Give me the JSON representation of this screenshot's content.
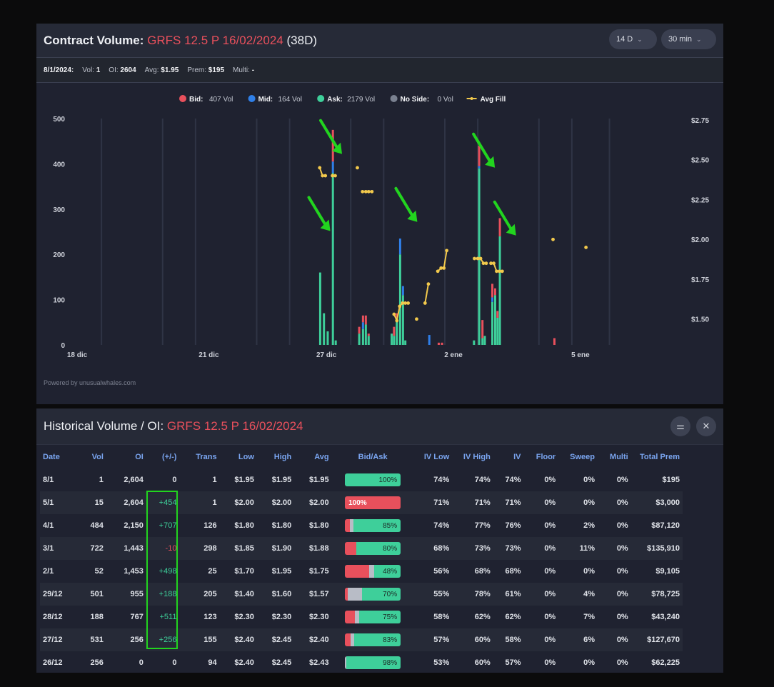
{
  "header": {
    "title_prefix": "Contract Volume:",
    "contract": "GRFS 12.5 P 16/02/2024",
    "days": "(38D)",
    "range_button": "14 D",
    "interval_button": "30 min"
  },
  "stats": {
    "date": "8/1/2024:",
    "vol_label": "Vol:",
    "vol": "1",
    "oi_label": "OI:",
    "oi": "2604",
    "avg_label": "Avg:",
    "avg": "$1.95",
    "prem_label": "Prem:",
    "prem": "$195",
    "multi_label": "Multi:",
    "multi": "-"
  },
  "chart_data": {
    "type": "bar",
    "legend_position": "top-center",
    "legend": [
      {
        "name": "Bid:",
        "value": "407 Vol",
        "color": "#e8505c"
      },
      {
        "name": "Mid:",
        "value": "164 Vol",
        "color": "#2f7fe8"
      },
      {
        "name": "Ask:",
        "value": "2179 Vol",
        "color": "#3ecf9a"
      },
      {
        "name": "No Side:",
        "value": "0 Vol",
        "color": "#7a8190"
      },
      {
        "name": "Avg Fill",
        "value": "",
        "color": "#f2c94c"
      }
    ],
    "x_labels": [
      "18 dic",
      "21 dic",
      "27 dic",
      "2 ene",
      "5 ene"
    ],
    "y_ticks": [
      "500",
      "400",
      "300",
      "200",
      "100",
      "0"
    ],
    "y_right_ticks": [
      "$2.75",
      "$2.50",
      "$2.25",
      "$2.00",
      "$1.75",
      "$1.50"
    ],
    "ylim": [
      0,
      500
    ],
    "y2lim": [
      1.3,
      2.75
    ],
    "grid": true,
    "bars": [
      {
        "x": 0.535,
        "ask": 160,
        "mid": 0,
        "bid": 0
      },
      {
        "x": 0.543,
        "ask": 70,
        "mid": 0,
        "bid": 0
      },
      {
        "x": 0.551,
        "ask": 30,
        "mid": 0,
        "bid": 0
      },
      {
        "x": 0.562,
        "ask": 380,
        "mid": 25,
        "bid": 70
      },
      {
        "x": 0.568,
        "ask": 10,
        "mid": 0,
        "bid": 0
      },
      {
        "x": 0.618,
        "ask": 25,
        "mid": 0,
        "bid": 15
      },
      {
        "x": 0.626,
        "ask": 35,
        "mid": 15,
        "bid": 15
      },
      {
        "x": 0.632,
        "ask": 45,
        "mid": 0,
        "bid": 20
      },
      {
        "x": 0.638,
        "ask": 20,
        "mid": 0,
        "bid": 5
      },
      {
        "x": 0.687,
        "ask": 25,
        "mid": 0,
        "bid": 0
      },
      {
        "x": 0.692,
        "ask": 20,
        "mid": 0,
        "bid": 20
      },
      {
        "x": 0.698,
        "ask": 60,
        "mid": 0,
        "bid": 10
      },
      {
        "x": 0.705,
        "ask": 200,
        "mid": 35,
        "bid": 0
      },
      {
        "x": 0.711,
        "ask": 110,
        "mid": 20,
        "bid": 0
      },
      {
        "x": 0.716,
        "ask": 10,
        "mid": 0,
        "bid": 0
      },
      {
        "x": 0.767,
        "ask": 0,
        "mid": 22,
        "bid": 0
      },
      {
        "x": 0.787,
        "ask": 0,
        "mid": 0,
        "bid": 5
      },
      {
        "x": 0.794,
        "ask": 0,
        "mid": 0,
        "bid": 5
      },
      {
        "x": 0.862,
        "ask": 10,
        "mid": 0,
        "bid": 0
      },
      {
        "x": 0.873,
        "ask": 390,
        "mid": 5,
        "bid": 45
      },
      {
        "x": 0.88,
        "ask": 15,
        "mid": 0,
        "bid": 40
      },
      {
        "x": 0.885,
        "ask": 20,
        "mid": 0,
        "bid": 0
      },
      {
        "x": 0.901,
        "ask": 95,
        "mid": 10,
        "bid": 30
      },
      {
        "x": 0.907,
        "ask": 110,
        "mid": 0,
        "bid": 15
      },
      {
        "x": 0.912,
        "ask": 60,
        "mid": 0,
        "bid": 15
      },
      {
        "x": 0.917,
        "ask": 240,
        "mid": 0,
        "bid": 40
      },
      {
        "x": 1.033,
        "ask": 0,
        "mid": 0,
        "bid": 15
      }
    ],
    "avg_fill_segments": [
      [
        [
          0.534,
          2.45
        ],
        [
          0.54,
          2.4
        ],
        [
          0.546,
          2.4
        ]
      ],
      [
        [
          0.561,
          2.4
        ],
        [
          0.567,
          2.4
        ]
      ],
      [
        [
          0.614,
          2.45
        ]
      ],
      [
        [
          0.625,
          2.3
        ],
        [
          0.632,
          2.3
        ],
        [
          0.638,
          2.3
        ],
        [
          0.645,
          2.3
        ]
      ],
      [
        [
          0.692,
          1.53
        ],
        [
          0.698,
          1.49
        ],
        [
          0.704,
          1.58
        ],
        [
          0.71,
          1.6
        ],
        [
          0.716,
          1.6
        ],
        [
          0.722,
          1.6
        ]
      ],
      [
        [
          0.74,
          1.5
        ]
      ],
      [
        [
          0.758,
          1.6
        ],
        [
          0.765,
          1.72
        ]
      ],
      [
        [
          0.785,
          1.8
        ],
        [
          0.792,
          1.82
        ],
        [
          0.798,
          1.82
        ],
        [
          0.804,
          1.93
        ]
      ],
      [
        [
          0.863,
          1.88
        ],
        [
          0.87,
          1.88
        ],
        [
          0.876,
          1.88
        ],
        [
          0.882,
          1.85
        ],
        [
          0.888,
          1.85
        ]
      ],
      [
        [
          0.898,
          1.85
        ],
        [
          0.904,
          1.85
        ],
        [
          0.91,
          1.8
        ],
        [
          0.916,
          1.8
        ],
        [
          0.922,
          1.8
        ]
      ],
      [
        [
          1.03,
          2.0
        ]
      ],
      [
        [
          1.1,
          1.95
        ]
      ]
    ],
    "arrows": [
      {
        "x": 0.545,
        "y": 480
      },
      {
        "x": 0.52,
        "y": 310
      },
      {
        "x": 0.705,
        "y": 330
      },
      {
        "x": 0.87,
        "y": 450
      },
      {
        "x": 0.915,
        "y": 300
      }
    ],
    "powered_by": "Powered by unusualwhales.com"
  },
  "table": {
    "title_prefix": "Historical Volume / OI:",
    "contract": "GRFS 12.5 P 16/02/2024",
    "columns": [
      "Date",
      "Vol",
      "OI",
      "(+/-)",
      "Trans",
      "Low",
      "High",
      "Avg",
      "Bid/Ask",
      "IV Low",
      "IV High",
      "IV",
      "Floor",
      "Sweep",
      "Multi",
      "Total Prem"
    ],
    "rows": [
      {
        "date": "8/1",
        "vol": "1",
        "oi": "2,604",
        "chg": "0",
        "chg_sign": "zero",
        "trans": "1",
        "low": "$1.95",
        "high": "$1.95",
        "avg": "$1.95",
        "bid": 0,
        "mid": 0,
        "ask": 100,
        "ba_label": "100%",
        "ba_side": "ask",
        "iv_low": "74%",
        "iv_high": "74%",
        "iv": "74%",
        "floor": "0%",
        "sweep": "0%",
        "multi": "0%",
        "prem": "$195"
      },
      {
        "date": "5/1",
        "vol": "15",
        "oi": "2,604",
        "chg": "+454",
        "chg_sign": "pos",
        "trans": "1",
        "low": "$2.00",
        "high": "$2.00",
        "avg": "$2.00",
        "bid": 100,
        "mid": 0,
        "ask": 0,
        "ba_label": "100%",
        "ba_side": "bid",
        "iv_low": "71%",
        "iv_high": "71%",
        "iv": "71%",
        "floor": "0%",
        "sweep": "0%",
        "multi": "0%",
        "prem": "$3,000"
      },
      {
        "date": "4/1",
        "vol": "484",
        "oi": "2,150",
        "chg": "+707",
        "chg_sign": "pos",
        "trans": "126",
        "low": "$1.80",
        "high": "$1.80",
        "avg": "$1.80",
        "bid": 9,
        "mid": 6,
        "ask": 85,
        "ba_label": "85%",
        "ba_side": "ask",
        "iv_low": "74%",
        "iv_high": "77%",
        "iv": "76%",
        "floor": "0%",
        "sweep": "2%",
        "multi": "0%",
        "prem": "$87,120"
      },
      {
        "date": "3/1",
        "vol": "722",
        "oi": "1,443",
        "chg": "-10",
        "chg_sign": "neg",
        "trans": "298",
        "low": "$1.85",
        "high": "$1.90",
        "avg": "$1.88",
        "bid": 20,
        "mid": 0,
        "ask": 80,
        "ba_label": "80%",
        "ba_side": "ask",
        "iv_low": "68%",
        "iv_high": "73%",
        "iv": "73%",
        "floor": "0%",
        "sweep": "11%",
        "multi": "0%",
        "prem": "$135,910"
      },
      {
        "date": "2/1",
        "vol": "52",
        "oi": "1,453",
        "chg": "+498",
        "chg_sign": "pos",
        "trans": "25",
        "low": "$1.70",
        "high": "$1.95",
        "avg": "$1.75",
        "bid": 44,
        "mid": 8,
        "ask": 48,
        "ba_label": "48%",
        "ba_side": "mid",
        "iv_low": "56%",
        "iv_high": "68%",
        "iv": "68%",
        "floor": "0%",
        "sweep": "0%",
        "multi": "0%",
        "prem": "$9,105"
      },
      {
        "date": "29/12",
        "vol": "501",
        "oi": "955",
        "chg": "+188",
        "chg_sign": "pos",
        "trans": "205",
        "low": "$1.40",
        "high": "$1.60",
        "avg": "$1.57",
        "bid": 5,
        "mid": 25,
        "ask": 70,
        "ba_label": "70%",
        "ba_side": "ask",
        "iv_low": "55%",
        "iv_high": "78%",
        "iv": "61%",
        "floor": "0%",
        "sweep": "4%",
        "multi": "0%",
        "prem": "$78,725"
      },
      {
        "date": "28/12",
        "vol": "188",
        "oi": "767",
        "chg": "+511",
        "chg_sign": "pos",
        "trans": "123",
        "low": "$2.30",
        "high": "$2.30",
        "avg": "$2.30",
        "bid": 18,
        "mid": 7,
        "ask": 75,
        "ba_label": "75%",
        "ba_side": "ask",
        "iv_low": "58%",
        "iv_high": "62%",
        "iv": "62%",
        "floor": "0%",
        "sweep": "7%",
        "multi": "0%",
        "prem": "$43,240"
      },
      {
        "date": "27/12",
        "vol": "531",
        "oi": "256",
        "chg": "+256",
        "chg_sign": "pos",
        "trans": "155",
        "low": "$2.40",
        "high": "$2.45",
        "avg": "$2.40",
        "bid": 10,
        "mid": 7,
        "ask": 83,
        "ba_label": "83%",
        "ba_side": "ask",
        "iv_low": "57%",
        "iv_high": "60%",
        "iv": "58%",
        "floor": "0%",
        "sweep": "6%",
        "multi": "0%",
        "prem": "$127,670"
      },
      {
        "date": "26/12",
        "vol": "256",
        "oi": "0",
        "chg": "0",
        "chg_sign": "zero",
        "trans": "94",
        "low": "$2.40",
        "high": "$2.45",
        "avg": "$2.43",
        "bid": 0,
        "mid": 2,
        "ask": 98,
        "ba_label": "98%",
        "ba_side": "ask",
        "iv_low": "53%",
        "iv_high": "60%",
        "iv": "57%",
        "floor": "0%",
        "sweep": "0%",
        "multi": "0%",
        "prem": "$62,225"
      }
    ]
  },
  "colors": {
    "bid": "#e8505c",
    "mid": "#2f7fe8",
    "ask": "#3ecf9a",
    "noside": "#7a8190",
    "avg_fill": "#f2c94c",
    "neutral_bar": "#b8bcc6",
    "highlight": "#22d41f",
    "arrow": "#22d41f"
  }
}
